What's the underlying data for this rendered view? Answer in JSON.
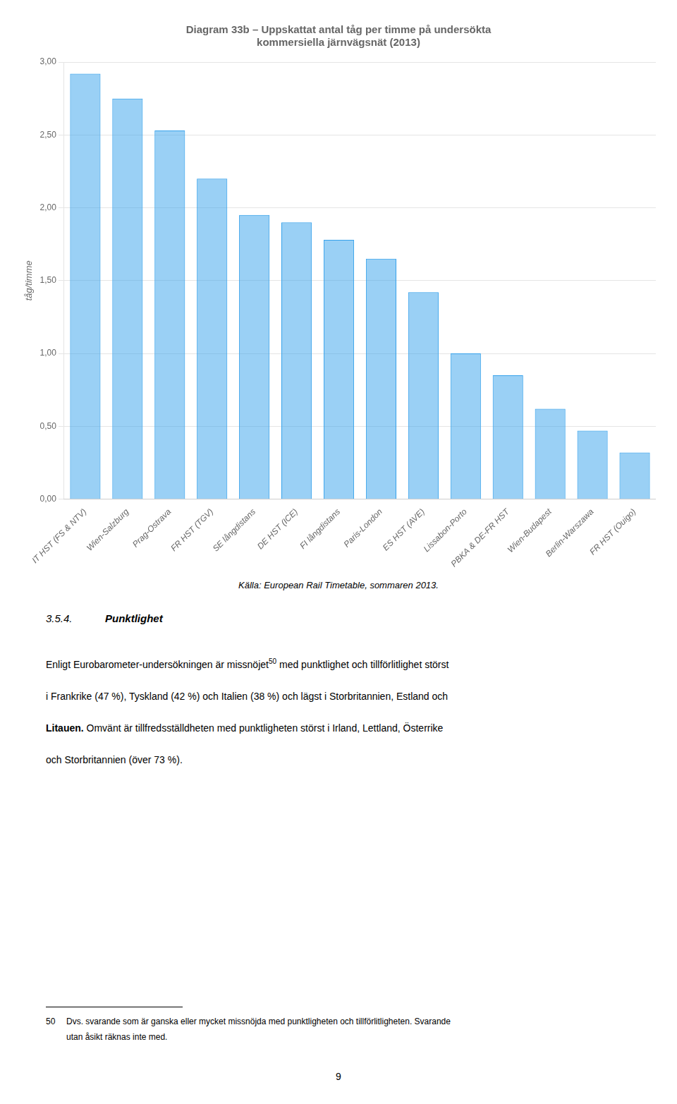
{
  "chart_data": {
    "type": "bar",
    "title": [
      "Diagram 33b – Uppskattat antal tåg per timme på undersökta",
      "kommersiella järnvägsnät (2013)"
    ],
    "ylabel": "tåg/timme",
    "categories": [
      "IT HST (FS & NTV)",
      "Wien-Salzburg",
      "Prag-Ostrava",
      "FR HST (TGV)",
      "SE långdistans",
      "DE HST (ICE)",
      "FI långdistans",
      "Paris-London",
      "ES HST (AVE)",
      "Lissabon-Porto",
      "PBKA & DE-FR HST",
      "Wien-Budapest",
      "Berlin-Warszawa",
      "FR HST (Ouigo)"
    ],
    "values": [
      2.92,
      2.75,
      2.53,
      2.2,
      1.95,
      1.9,
      1.78,
      1.65,
      1.42,
      1.0,
      0.85,
      0.62,
      0.47,
      0.32
    ],
    "ylim": [
      0.0,
      3.0
    ],
    "yticks": [
      {
        "value": 0.0,
        "label": "0,00"
      },
      {
        "value": 0.5,
        "label": "0,50"
      },
      {
        "value": 1.0,
        "label": "1,00"
      },
      {
        "value": 1.5,
        "label": "1,50"
      },
      {
        "value": 2.0,
        "label": "2,00"
      },
      {
        "value": 2.5,
        "label": "2,50"
      },
      {
        "value": 3.0,
        "label": "3,00"
      }
    ],
    "grid": true,
    "annotations": [
      "Källa: European Rail Timetable, sommaren 2013.",
      "3.5.4.",
      "Punktlighet",
      "Enligt Eurobarometer-undersökningen är missnöjet",
      "50",
      " med punktlighet och tillförlitlighet störst",
      "i Frankrike (47 %), Tyskland (42 %) och Italien (38 %) och lägst i Storbritannien, Estland och",
      "Litauen.",
      " Omvänt är tillfredsställdheten med punktligheten störst i Irland, Lettland, Österrike",
      "och Storbritannien (över 73 %).",
      "50",
      "Dvs. svarande som är ganska eller mycket missnöjda med punktligheten och tillförlitligheten. Svarande",
      "utan åsikt räknas inte med.",
      "9"
    ]
  }
}
